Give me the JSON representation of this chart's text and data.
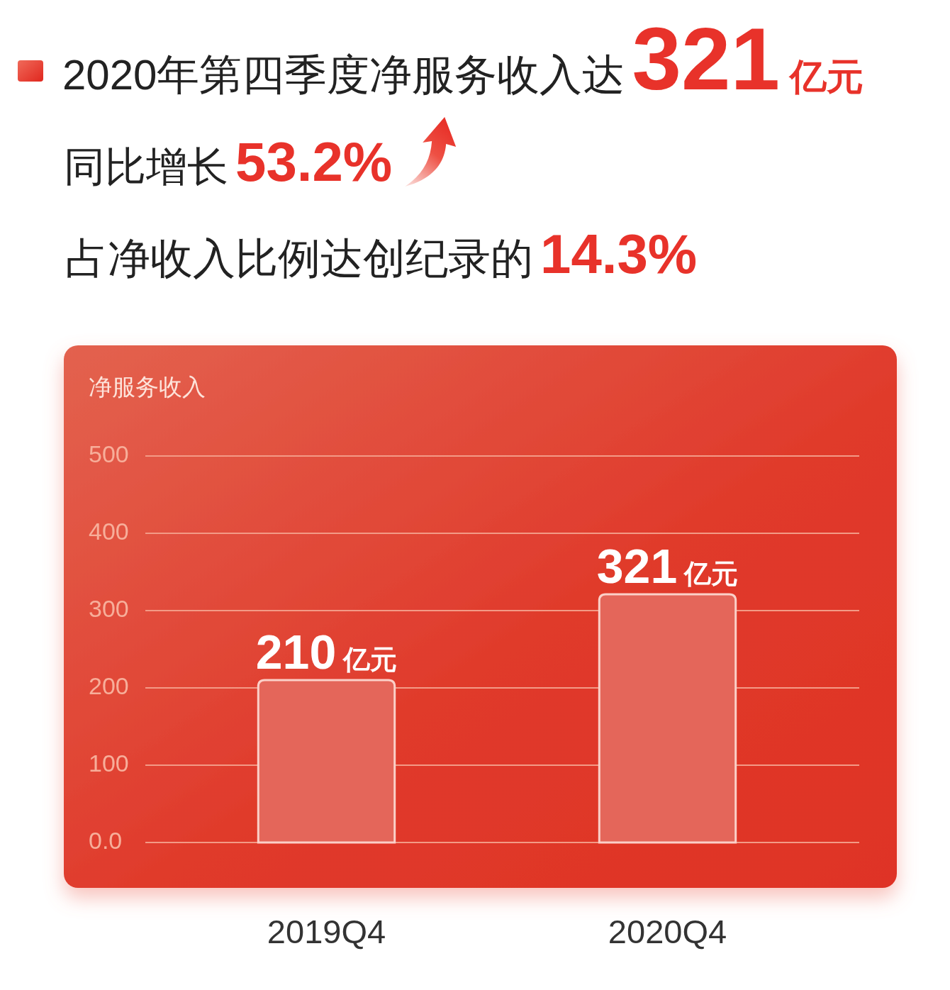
{
  "chart_data": {
    "type": "bar",
    "title": "2020年第四季度净服务收入达321亿元",
    "subtitle": "同比增长53.2%",
    "annotations": [
      "占净收入比例达创纪录的14.3%"
    ],
    "ylabel": "净服务收入",
    "categories": [
      "2019Q4",
      "2020Q4"
    ],
    "values": [
      210,
      321
    ],
    "value_labels": [
      "210亿元",
      "321亿元"
    ],
    "color": "#e4665a",
    "ylim": [
      0,
      500
    ],
    "yticks": [
      {
        "value": 0,
        "label": "0.0"
      },
      100,
      200,
      300,
      400,
      500
    ],
    "grid": "y"
  }
}
